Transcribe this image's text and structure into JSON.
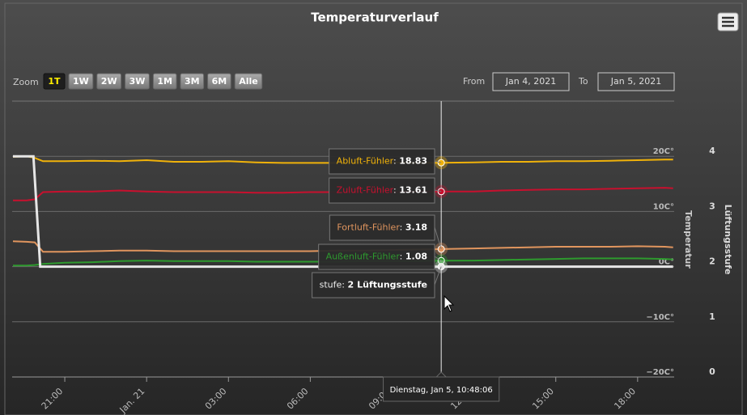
{
  "chart_data": {
    "type": "line",
    "title": "Temperaturverlauf",
    "range_selector": {
      "label": "Zoom",
      "buttons": [
        "1T",
        "1W",
        "2W",
        "3W",
        "1M",
        "3M",
        "6M",
        "Alle"
      ],
      "selected": 0,
      "from_label": "From",
      "from": "Jan 4, 2021",
      "to_label": "To",
      "to": "Jan 5, 2021"
    },
    "xlim": [
      19.07,
      43.34
    ],
    "xticks": [
      {
        "value": 21,
        "label": "21:00"
      },
      {
        "value": 24,
        "label": "Jan. 21"
      },
      {
        "value": 27,
        "label": "03:00"
      },
      {
        "value": 30,
        "label": "06:00"
      },
      {
        "value": 33,
        "label": "09:00"
      },
      {
        "value": 36,
        "label": "12:00"
      },
      {
        "value": 39,
        "label": "15:00"
      },
      {
        "value": 42,
        "label": "18:00"
      }
    ],
    "ylabel": "Temperatur",
    "ylim": [
      -20,
      30
    ],
    "yticks": [
      {
        "value": -20,
        "label": "−20C°"
      },
      {
        "value": -10,
        "label": "−10C°"
      },
      {
        "value": 0,
        "label": "0C°"
      },
      {
        "value": 10,
        "label": "10C°"
      },
      {
        "value": 20,
        "label": "20C°"
      }
    ],
    "y2label": "Lüftungsstufe",
    "y2lim": [
      0,
      5
    ],
    "y2ticks": [
      0,
      1,
      2,
      3,
      4
    ],
    "grid": true,
    "series": [
      {
        "name": "Abluft-Fühler",
        "color": "#f0b20a",
        "x": [
          19.1,
          19.6,
          19.9,
          20.2,
          21,
          22,
          23,
          24,
          25,
          26,
          27,
          28,
          29,
          30,
          31,
          32,
          33,
          34,
          34.8,
          36,
          37,
          38,
          39,
          40,
          41,
          42,
          43,
          43.3
        ],
        "values": [
          19.9,
          20.0,
          19.7,
          19.1,
          19.1,
          19.2,
          19.1,
          19.3,
          19.0,
          19.0,
          19.1,
          18.9,
          18.8,
          18.8,
          18.8,
          18.8,
          18.9,
          18.8,
          18.83,
          18.9,
          19.0,
          19.0,
          19.1,
          19.1,
          19.2,
          19.3,
          19.4,
          19.4
        ]
      },
      {
        "name": "Zuluft-Fühler",
        "color": "#c8102e",
        "x": [
          19.1,
          19.6,
          19.9,
          20.2,
          21,
          22,
          23,
          24,
          25,
          26,
          27,
          28,
          29,
          30,
          31,
          32,
          33,
          34,
          34.8,
          36,
          37,
          38,
          39,
          40,
          41,
          42,
          43,
          43.3
        ],
        "values": [
          12.0,
          12.0,
          12.2,
          13.5,
          13.6,
          13.6,
          13.8,
          13.6,
          13.5,
          13.5,
          13.5,
          13.4,
          13.4,
          13.5,
          13.5,
          13.5,
          13.5,
          13.6,
          13.61,
          13.6,
          13.8,
          13.9,
          14.0,
          14.0,
          14.1,
          14.2,
          14.3,
          14.2
        ]
      },
      {
        "name": "Fortluft-Fühler",
        "color": "#e0955e",
        "x": [
          19.1,
          19.6,
          19.9,
          20.2,
          21,
          22,
          23,
          24,
          25,
          26,
          27,
          28,
          29,
          30,
          31,
          32,
          33,
          34,
          34.8,
          36,
          37,
          38,
          39,
          40,
          41,
          42,
          43,
          43.3
        ],
        "values": [
          4.6,
          4.5,
          4.4,
          2.7,
          2.7,
          2.8,
          2.9,
          2.9,
          2.8,
          2.8,
          2.8,
          2.8,
          2.8,
          2.8,
          2.9,
          2.9,
          3.0,
          3.1,
          3.18,
          3.3,
          3.4,
          3.5,
          3.6,
          3.6,
          3.6,
          3.7,
          3.6,
          3.5
        ]
      },
      {
        "name": "Außenluft-Fühler",
        "color": "#2e9a2e",
        "x": [
          19.1,
          19.6,
          19.9,
          20.2,
          21,
          22,
          23,
          24,
          25,
          26,
          27,
          28,
          29,
          30,
          31,
          32,
          33,
          34,
          34.8,
          36,
          37,
          38,
          39,
          40,
          41,
          42,
          43,
          43.3
        ],
        "values": [
          0.2,
          0.2,
          0.3,
          0.5,
          0.7,
          0.8,
          1.0,
          1.1,
          1.0,
          1.0,
          1.0,
          0.9,
          0.9,
          0.9,
          0.9,
          1.0,
          1.0,
          1.0,
          1.08,
          1.1,
          1.2,
          1.3,
          1.4,
          1.5,
          1.5,
          1.5,
          1.4,
          1.3
        ]
      },
      {
        "name": "stufe",
        "color": "#e6e6e6",
        "axis": "y2",
        "x": [
          19.1,
          19.85,
          20.1,
          43.3
        ],
        "values": [
          4,
          4,
          2,
          2
        ]
      }
    ],
    "tooltip": {
      "x": 34.8,
      "x_label": "Dienstag, Jan 5, 10:48:06",
      "items": [
        {
          "series": 0,
          "value": 18.83
        },
        {
          "series": 1,
          "value": 13.61
        },
        {
          "series": 2,
          "value": 3.18
        },
        {
          "series": 3,
          "value": 1.08
        },
        {
          "series": 4,
          "value": 2,
          "suffix": "Lüftungsstufe"
        }
      ]
    }
  }
}
